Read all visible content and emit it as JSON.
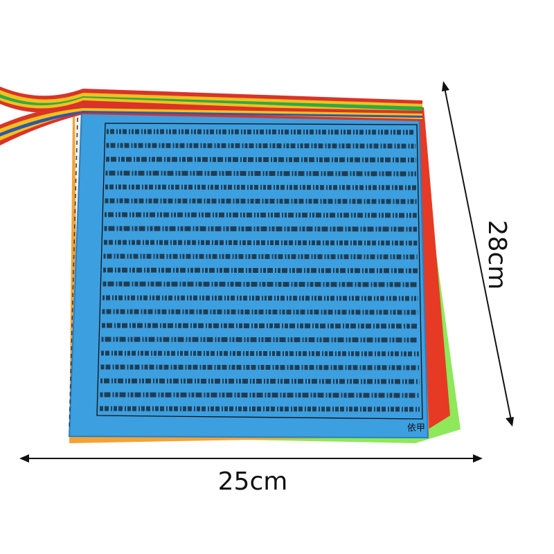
{
  "dimensions": {
    "width": "25cm",
    "height": "28cm"
  },
  "flag_label": "依甲"
}
